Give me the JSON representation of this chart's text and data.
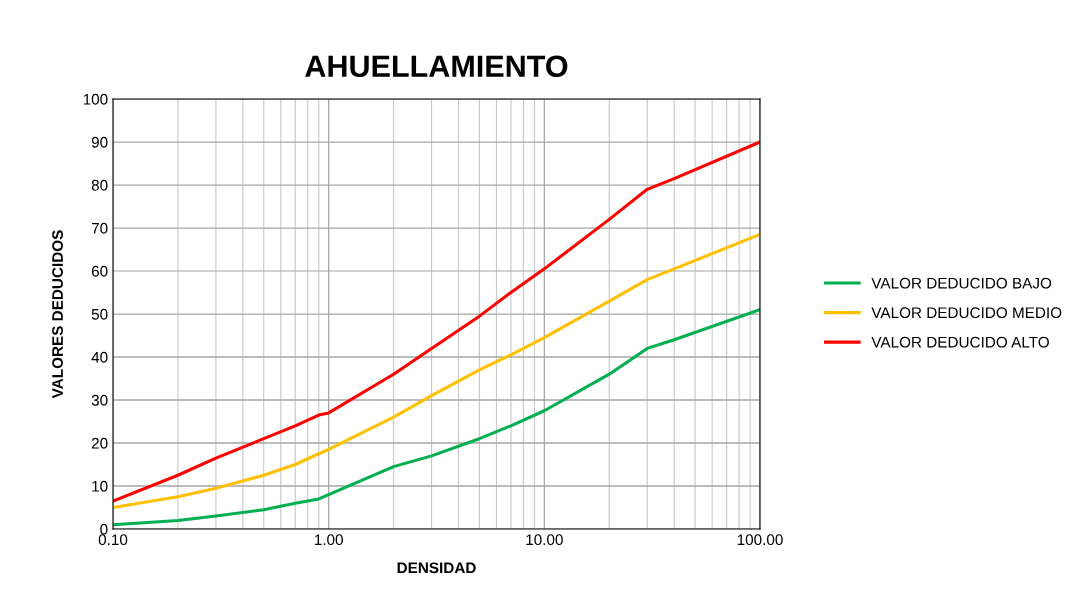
{
  "chart_data": {
    "type": "line",
    "title": "AHUELLAMIENTO",
    "xlabel": "DENSIDAD",
    "ylabel": "VALORES DEDUCIDOS",
    "log": "x",
    "grid": true,
    "legend": "right",
    "line_style": "solid",
    "marker": "none",
    "x": [
      0.1,
      0.2,
      0.3,
      0.5,
      0.7,
      0.9,
      1,
      2,
      3,
      5,
      7,
      10,
      20,
      30,
      40,
      100
    ],
    "xlim": [
      0.1,
      100
    ],
    "xticks": [
      {
        "value": 0.1,
        "label": "0.10"
      },
      {
        "value": 1,
        "label": "1.00"
      },
      {
        "value": 10,
        "label": "10.00"
      },
      {
        "value": 100,
        "label": "100.00"
      }
    ],
    "ylim": [
      0,
      100
    ],
    "yticks": [
      0,
      10,
      20,
      30,
      40,
      50,
      60,
      70,
      80,
      90,
      100
    ],
    "series": [
      {
        "name": "VALOR DEDUCIDO BAJO",
        "color": "#00b050",
        "values": [
          1,
          2,
          3,
          4.5,
          6,
          7,
          8,
          14.5,
          17,
          21,
          24,
          27.5,
          36,
          42,
          44,
          51
        ]
      },
      {
        "name": "VALOR DEDUCIDO MEDIO",
        "color": "#ffc000",
        "values": [
          5,
          7.5,
          9.5,
          12.5,
          15,
          17.5,
          18.5,
          26,
          31,
          37,
          40.5,
          44.5,
          53,
          58,
          60.5,
          68.5
        ]
      },
      {
        "name": "VALOR DEDUCIDO ALTO",
        "color": "#ff0000",
        "values": [
          6.5,
          12.5,
          16.5,
          21,
          24,
          26.5,
          27,
          36,
          42,
          49.5,
          55,
          60.5,
          72,
          79,
          81.5,
          90
        ]
      }
    ]
  }
}
